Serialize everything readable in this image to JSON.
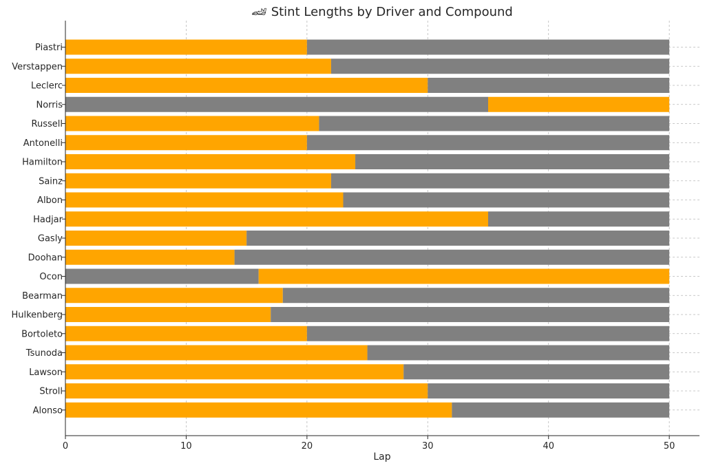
{
  "chart_data": {
    "type": "bar",
    "orientation": "horizontal",
    "stacked": true,
    "title": "🏎 Stint Lengths by Driver and Compound",
    "xlabel": "Lap",
    "ylabel": "",
    "xlim": [
      0,
      52.5
    ],
    "xticks": [
      0,
      10,
      20,
      30,
      40,
      50
    ],
    "grid": true,
    "legend": "none",
    "compound_colors": {
      "MEDIUM": "#FFA500",
      "HARD": "#808080"
    },
    "drivers": [
      {
        "name": "Piastri",
        "stints": [
          {
            "compound": "MEDIUM",
            "start": 0,
            "end": 20
          },
          {
            "compound": "HARD",
            "start": 20,
            "end": 50
          }
        ]
      },
      {
        "name": "Verstappen",
        "stints": [
          {
            "compound": "MEDIUM",
            "start": 0,
            "end": 22
          },
          {
            "compound": "HARD",
            "start": 22,
            "end": 50
          }
        ]
      },
      {
        "name": "Leclerc",
        "stints": [
          {
            "compound": "MEDIUM",
            "start": 0,
            "end": 30
          },
          {
            "compound": "HARD",
            "start": 30,
            "end": 50
          }
        ]
      },
      {
        "name": "Norris",
        "stints": [
          {
            "compound": "HARD",
            "start": 0,
            "end": 35
          },
          {
            "compound": "MEDIUM",
            "start": 35,
            "end": 50
          }
        ]
      },
      {
        "name": "Russell",
        "stints": [
          {
            "compound": "MEDIUM",
            "start": 0,
            "end": 21
          },
          {
            "compound": "HARD",
            "start": 21,
            "end": 50
          }
        ]
      },
      {
        "name": "Antonelli",
        "stints": [
          {
            "compound": "MEDIUM",
            "start": 0,
            "end": 20
          },
          {
            "compound": "HARD",
            "start": 20,
            "end": 50
          }
        ]
      },
      {
        "name": "Hamilton",
        "stints": [
          {
            "compound": "MEDIUM",
            "start": 0,
            "end": 24
          },
          {
            "compound": "HARD",
            "start": 24,
            "end": 50
          }
        ]
      },
      {
        "name": "Sainz",
        "stints": [
          {
            "compound": "MEDIUM",
            "start": 0,
            "end": 22
          },
          {
            "compound": "HARD",
            "start": 22,
            "end": 50
          }
        ]
      },
      {
        "name": "Albon",
        "stints": [
          {
            "compound": "MEDIUM",
            "start": 0,
            "end": 23
          },
          {
            "compound": "HARD",
            "start": 23,
            "end": 50
          }
        ]
      },
      {
        "name": "Hadjar",
        "stints": [
          {
            "compound": "MEDIUM",
            "start": 0,
            "end": 35
          },
          {
            "compound": "HARD",
            "start": 35,
            "end": 50
          }
        ]
      },
      {
        "name": "Gasly",
        "stints": [
          {
            "compound": "MEDIUM",
            "start": 0,
            "end": 15
          },
          {
            "compound": "HARD",
            "start": 15,
            "end": 50
          }
        ]
      },
      {
        "name": "Doohan",
        "stints": [
          {
            "compound": "MEDIUM",
            "start": 0,
            "end": 14
          },
          {
            "compound": "HARD",
            "start": 14,
            "end": 50
          }
        ]
      },
      {
        "name": "Ocon",
        "stints": [
          {
            "compound": "HARD",
            "start": 0,
            "end": 16
          },
          {
            "compound": "MEDIUM",
            "start": 16,
            "end": 50
          }
        ]
      },
      {
        "name": "Bearman",
        "stints": [
          {
            "compound": "MEDIUM",
            "start": 0,
            "end": 18
          },
          {
            "compound": "HARD",
            "start": 18,
            "end": 50
          }
        ]
      },
      {
        "name": "Hulkenberg",
        "stints": [
          {
            "compound": "MEDIUM",
            "start": 0,
            "end": 17
          },
          {
            "compound": "HARD",
            "start": 17,
            "end": 50
          }
        ]
      },
      {
        "name": "Bortoleto",
        "stints": [
          {
            "compound": "MEDIUM",
            "start": 0,
            "end": 20
          },
          {
            "compound": "HARD",
            "start": 20,
            "end": 50
          }
        ]
      },
      {
        "name": "Tsunoda",
        "stints": [
          {
            "compound": "MEDIUM",
            "start": 0,
            "end": 25
          },
          {
            "compound": "HARD",
            "start": 25,
            "end": 50
          }
        ]
      },
      {
        "name": "Lawson",
        "stints": [
          {
            "compound": "MEDIUM",
            "start": 0,
            "end": 28
          },
          {
            "compound": "HARD",
            "start": 28,
            "end": 50
          }
        ]
      },
      {
        "name": "Stroll",
        "stints": [
          {
            "compound": "MEDIUM",
            "start": 0,
            "end": 30
          },
          {
            "compound": "HARD",
            "start": 30,
            "end": 50
          }
        ]
      },
      {
        "name": "Alonso",
        "stints": [
          {
            "compound": "MEDIUM",
            "start": 0,
            "end": 32
          },
          {
            "compound": "HARD",
            "start": 32,
            "end": 50
          }
        ]
      }
    ]
  }
}
